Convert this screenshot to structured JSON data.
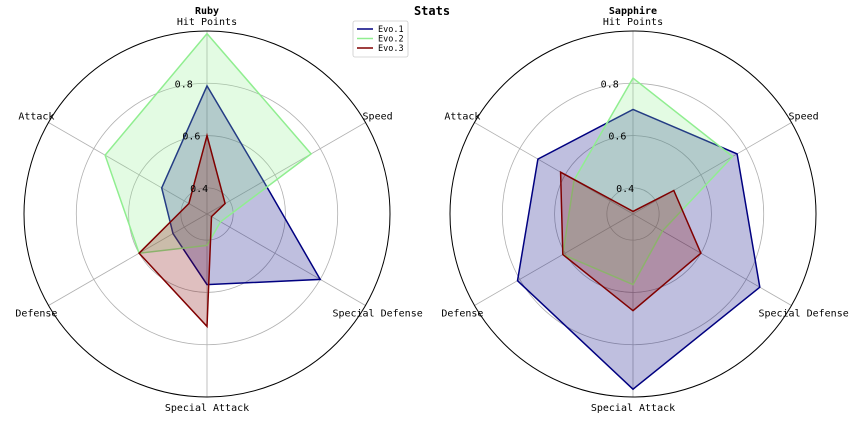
{
  "title": "Stats",
  "chart_data": {
    "type": "radar",
    "axes": [
      "Hit Points",
      "Speed",
      "Special Defense",
      "Special Attack",
      "Defense",
      "Attack"
    ],
    "rlim": [
      0.3,
      1.0
    ],
    "grid": true,
    "legend_position": "upper-left-of-second-chart",
    "series": [
      {
        "name": "Evo.1",
        "color": "#000080"
      },
      {
        "name": "Evo.2",
        "color": "#90ee90"
      },
      {
        "name": "Evo.3",
        "color": "#800000"
      }
    ],
    "charts": [
      {
        "title": "Ruby",
        "rticks": [
          0.4,
          0.6,
          0.8
        ],
        "values": [
          [
            0.79,
            0.55,
            0.8,
            0.57,
            0.45,
            0.5
          ],
          [
            0.99,
            0.76,
            0.36,
            0.42,
            0.6,
            0.75
          ],
          [
            0.6,
            0.38,
            0.32,
            0.73,
            0.6,
            0.38
          ]
        ]
      },
      {
        "title": "Sapphire",
        "rticks": [
          0.4,
          0.6,
          0.8
        ],
        "values": [
          [
            0.7,
            0.76,
            0.86,
            0.97,
            0.81,
            0.72
          ],
          [
            0.82,
            0.74,
            0.43,
            0.57,
            0.61,
            0.56
          ],
          [
            0.31,
            0.48,
            0.6,
            0.67,
            0.61,
            0.62
          ]
        ]
      }
    ]
  }
}
